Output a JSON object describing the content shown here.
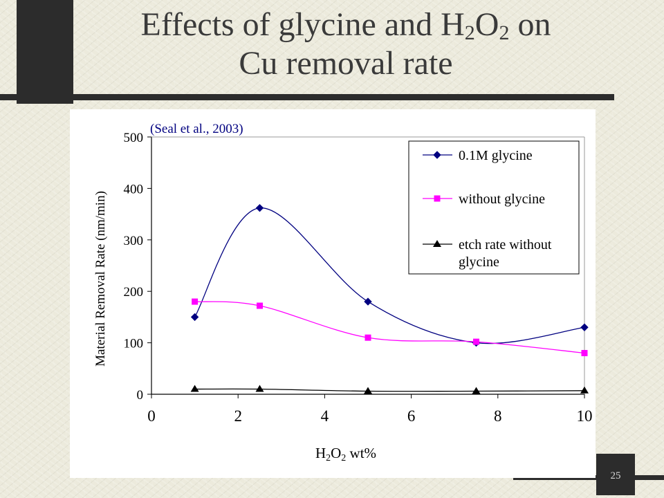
{
  "slide": {
    "title_pre": "Effects of glycine and H",
    "title_sub1": "2",
    "title_mid": "O",
    "title_sub2": "2",
    "title_post": " on",
    "title_line2": "Cu removal rate",
    "page_number": "25"
  },
  "chart_data": {
    "type": "line",
    "annotation": "(Seal et al., 2003)",
    "xlabel_pre": "H",
    "xlabel_sub1": "2",
    "xlabel_mid": "O",
    "xlabel_sub2": "2",
    "xlabel_post": " wt%",
    "ylabel": "Material Removal Rate (nm/min)",
    "xlim": [
      0,
      10
    ],
    "ylim": [
      0,
      500
    ],
    "x_ticks": [
      "0",
      "2",
      "4",
      "6",
      "8",
      "10"
    ],
    "y_ticks": [
      "0",
      "100",
      "200",
      "300",
      "400",
      "500"
    ],
    "grid": false,
    "legend_position": "top-right",
    "series": [
      {
        "name": "0.1M glycine",
        "color": "#000080",
        "marker": "diamond",
        "x": [
          1,
          2.5,
          5,
          7.5,
          10
        ],
        "y": [
          150,
          362,
          180,
          100,
          130
        ]
      },
      {
        "name": "without glycine",
        "color": "#ff00ff",
        "marker": "square",
        "x": [
          1,
          2.5,
          5,
          7.5,
          10
        ],
        "y": [
          180,
          172,
          110,
          102,
          80
        ]
      },
      {
        "name": "etch rate without glycine",
        "name_line1": "etch rate without",
        "name_line2": "glycine",
        "color": "#000000",
        "marker": "triangle",
        "x": [
          1,
          2.5,
          5,
          7.5,
          10
        ],
        "y": [
          10,
          10,
          6,
          6,
          7
        ]
      }
    ]
  }
}
